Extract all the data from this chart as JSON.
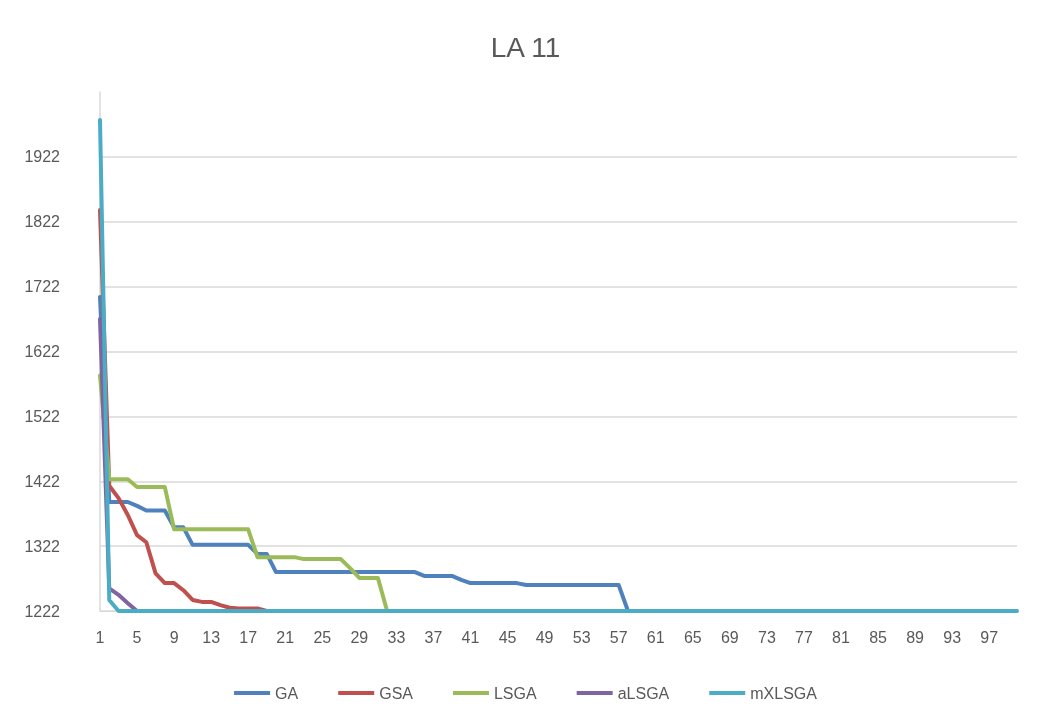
{
  "chart_data": {
    "type": "line",
    "title": "LA 11",
    "categories": [
      "1",
      null,
      null,
      null,
      "5",
      null,
      null,
      null,
      "9",
      null,
      null,
      null,
      "13",
      null,
      null,
      null,
      "17",
      null,
      null,
      null,
      "21",
      null,
      null,
      null,
      "25",
      null,
      null,
      null,
      "29",
      null,
      null,
      null,
      "33",
      null,
      null,
      null,
      "37",
      null,
      null,
      null,
      "41",
      null,
      null,
      null,
      "45",
      null,
      null,
      null,
      "49",
      null,
      null,
      null,
      "53",
      null,
      null,
      null,
      "57",
      null,
      null,
      null,
      "61",
      null,
      null,
      null,
      "65",
      null,
      null,
      null,
      "69",
      null,
      null,
      null,
      "73",
      null,
      null,
      null,
      "77",
      null,
      null,
      null,
      "81",
      null,
      null,
      null,
      "85",
      null,
      null,
      null,
      "89",
      null,
      null,
      null,
      "93",
      null,
      null,
      null,
      "97",
      null,
      null,
      null
    ],
    "series": [
      {
        "name": "GA",
        "color": "#4f81bd",
        "values": [
          1706,
          1390,
          1390,
          1390,
          1384,
          1377,
          1377,
          1377,
          1351,
          1351,
          1324,
          1324,
          1324,
          1324,
          1324,
          1324,
          1324,
          1310,
          1310,
          1282,
          1282,
          1282,
          1282,
          1282,
          1282,
          1282,
          1282,
          1282,
          1282,
          1282,
          1282,
          1282,
          1282,
          1282,
          1282,
          1276,
          1276,
          1276,
          1276,
          1270,
          1265,
          1265,
          1265,
          1265,
          1265,
          1265,
          1262,
          1262,
          1262,
          1262,
          1262,
          1262,
          1262,
          1262,
          1262,
          1262,
          1262,
          1222,
          null,
          null,
          null,
          null,
          null,
          null,
          null,
          null,
          null,
          null,
          null,
          null,
          null,
          null,
          null,
          null,
          null,
          null,
          null,
          null,
          null,
          null,
          null,
          null,
          null,
          null,
          null,
          null,
          null,
          null,
          null,
          null,
          null,
          null,
          null,
          null,
          null,
          null,
          null,
          null,
          null,
          null
        ]
      },
      {
        "name": "GSA",
        "color": "#c0504d",
        "values": [
          1840,
          1415,
          1396,
          1370,
          1339,
          1328,
          1280,
          1265,
          1265,
          1254,
          1239,
          1236,
          1236,
          1231,
          1227,
          1226,
          1226,
          1226,
          1222,
          null,
          null,
          null,
          null,
          null,
          null,
          null,
          null,
          null,
          null,
          null,
          null,
          null,
          null,
          null,
          null,
          null,
          null,
          null,
          null,
          null,
          null,
          null,
          null,
          null,
          null,
          null,
          null,
          null,
          null,
          null,
          null,
          null,
          null,
          null,
          null,
          null,
          null,
          null,
          null,
          null,
          null,
          null,
          null,
          null,
          null,
          null,
          null,
          null,
          null,
          null,
          null,
          null,
          null,
          null,
          null,
          null,
          null,
          null,
          null,
          null,
          null,
          null,
          null,
          null,
          null,
          null,
          null,
          null,
          null,
          null,
          null,
          null,
          null,
          null,
          null,
          null,
          null,
          null,
          null,
          null
        ]
      },
      {
        "name": "LSGA",
        "color": "#9bbb59",
        "values": [
          1585,
          1425,
          1425,
          1425,
          1413,
          1413,
          1413,
          1413,
          1348,
          1348,
          1348,
          1348,
          1348,
          1348,
          1348,
          1348,
          1348,
          1305,
          1305,
          1305,
          1305,
          1305,
          1302,
          1302,
          1302,
          1302,
          1302,
          1288,
          1273,
          1273,
          1273,
          1222,
          null,
          null,
          null,
          null,
          null,
          null,
          null,
          null,
          null,
          null,
          null,
          null,
          null,
          null,
          null,
          null,
          null,
          null,
          null,
          null,
          null,
          null,
          null,
          null,
          null,
          null,
          null,
          null,
          null,
          null,
          null,
          null,
          null,
          null,
          null,
          null,
          null,
          null,
          null,
          null,
          null,
          null,
          null,
          null,
          null,
          null,
          null,
          null,
          null,
          null,
          null,
          null,
          null,
          null,
          null,
          null,
          null,
          null,
          null,
          null,
          null,
          null,
          null,
          null,
          null,
          null,
          null,
          null
        ]
      },
      {
        "name": "aLSGA",
        "color": "#8064a2",
        "values": [
          1672,
          1257,
          1247,
          1234,
          1222,
          null,
          null,
          null,
          null,
          null,
          null,
          null,
          null,
          null,
          null,
          null,
          null,
          null,
          null,
          null,
          null,
          null,
          null,
          null,
          null,
          null,
          null,
          null,
          null,
          null,
          null,
          null,
          null,
          null,
          null,
          null,
          null,
          null,
          null,
          null,
          null,
          null,
          null,
          null,
          null,
          null,
          null,
          null,
          null,
          null,
          null,
          null,
          null,
          null,
          null,
          null,
          null,
          null,
          null,
          null,
          null,
          null,
          null,
          null,
          null,
          null,
          null,
          null,
          null,
          null,
          null,
          null,
          null,
          null,
          null,
          null,
          null,
          null,
          null,
          null,
          null,
          null,
          null,
          null,
          null,
          null,
          null,
          null,
          null,
          null,
          null,
          null,
          null,
          null,
          null,
          null,
          null,
          null,
          null,
          null
        ]
      },
      {
        "name": "mXLSGA",
        "color": "#4bacc6",
        "values": [
          1979,
          1239,
          1222,
          1222,
          1222,
          1222,
          1222,
          1222,
          1222,
          1222,
          1222,
          1222,
          1222,
          1222,
          1222,
          1222,
          1222,
          1222,
          1222,
          1222,
          1222,
          1222,
          1222,
          1222,
          1222,
          1222,
          1222,
          1222,
          1222,
          1222,
          1222,
          1222,
          1222,
          1222,
          1222,
          1222,
          1222,
          1222,
          1222,
          1222,
          1222,
          1222,
          1222,
          1222,
          1222,
          1222,
          1222,
          1222,
          1222,
          1222,
          1222,
          1222,
          1222,
          1222,
          1222,
          1222,
          1222,
          1222,
          1222,
          1222,
          1222,
          1222,
          1222,
          1222,
          1222,
          1222,
          1222,
          1222,
          1222,
          1222,
          1222,
          1222,
          1222,
          1222,
          1222,
          1222,
          1222,
          1222,
          1222,
          1222,
          1222,
          1222,
          1222,
          1222,
          1222,
          1222,
          1222,
          1222,
          1222,
          1222,
          1222,
          1222,
          1222,
          1222,
          1222,
          1222,
          1222,
          1222,
          1222,
          1222
        ]
      }
    ],
    "ylim": [
      1222,
      2022
    ],
    "yticks": [
      1222,
      1322,
      1422,
      1522,
      1622,
      1722,
      1822,
      1922
    ],
    "grid": "y",
    "legend": "bottom",
    "marker": "none",
    "line_style": "solid"
  }
}
